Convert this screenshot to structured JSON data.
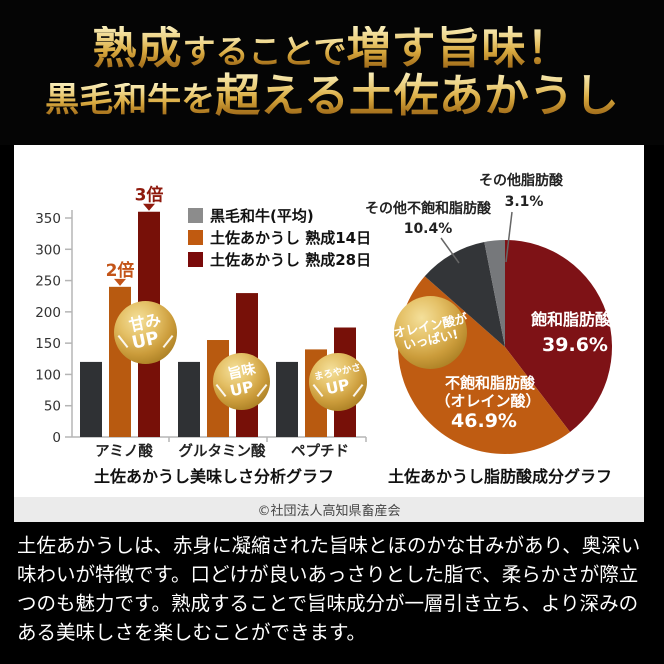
{
  "page": {
    "background": "#000000",
    "panel_background": "#ffffff"
  },
  "header": {
    "gold_top": "#f9eebc",
    "gold_bottom": "#96621a",
    "line1": [
      {
        "text": "熟成"
      },
      {
        "text": "することで"
      },
      {
        "text": "増す旨味！"
      }
    ],
    "line2": [
      {
        "text": "黒毛和牛を"
      },
      {
        "text": "超える土佐あかうし"
      }
    ]
  },
  "chart_data": [
    {
      "type": "bar",
      "title": "土佐あかうし美味しさ分析グラフ",
      "categories": [
        "アミノ酸",
        "グルタミン酸",
        "ペプチド"
      ],
      "series": [
        {
          "name": "黒毛和牛(平均)",
          "legend_color": "#8c8c8c",
          "bar_color": "#2f3134",
          "values": [
            120,
            120,
            120
          ]
        },
        {
          "name": "土佐あかうし 熟成14日",
          "legend_color": "#c05a10",
          "bar_color": "#b85a10",
          "values": [
            240,
            155,
            140
          ]
        },
        {
          "name": "土佐あかうし 熟成28日",
          "legend_color": "#7a0a0a",
          "bar_color": "#771008",
          "values": [
            360,
            230,
            175
          ]
        }
      ],
      "ylim": [
        0,
        350
      ],
      "ytick_step": 50,
      "grid": false,
      "legend_position": "upper-right",
      "annotations": [
        {
          "text": "2倍",
          "series": 1,
          "category": 0,
          "color": "#c35418"
        },
        {
          "text": "3倍",
          "series": 2,
          "category": 0,
          "color": "#8f1a0d"
        }
      ]
    },
    {
      "type": "pie",
      "title": "土佐あかうし脂肪酸成分グラフ",
      "start_angle": "12-oclock-clockwise",
      "slices": [
        {
          "label": "飽和脂肪酸",
          "value_pct": 39.6,
          "color": "#7e1216",
          "label_position": "inside",
          "label_lines": [
            "飽和脂肪酸"
          ]
        },
        {
          "label": "不飽和脂肪酸（オレイン酸）",
          "value_pct": 46.9,
          "color": "#bf5c12",
          "label_position": "inside",
          "label_lines": [
            "不飽和脂肪酸",
            "（オレイン酸）"
          ]
        },
        {
          "label": "その他不飽和脂肪酸",
          "value_pct": 10.4,
          "color": "#333538",
          "label_position": "outside",
          "label_lines": [
            "その他不飽和脂肪酸"
          ]
        },
        {
          "label": "その他脂肪酸",
          "value_pct": 3.1,
          "color": "#76787b",
          "label_position": "outside",
          "label_lines": [
            "その他脂肪酸"
          ]
        }
      ]
    }
  ],
  "badges": [
    {
      "lines": [
        "甘み",
        "UP"
      ]
    },
    {
      "lines": [
        "旨味",
        "UP"
      ]
    },
    {
      "lines": [
        "まろやかさ",
        "UP"
      ]
    },
    {
      "lines": [
        "オレイン酸が",
        "いっぱい!"
      ]
    }
  ],
  "credit": "©社団法人高知県畜産会",
  "description": "土佐あかうしは、赤身に凝縮された旨味とほのかな甘みがあり、奥深い味わいが特徴です。口どけが良いあっさりとした脂で、柔らかさが際立つのも魅力です。熟成することで旨味成分が一層引き立ち、より深みのある美味しさを楽しむことができます。"
}
